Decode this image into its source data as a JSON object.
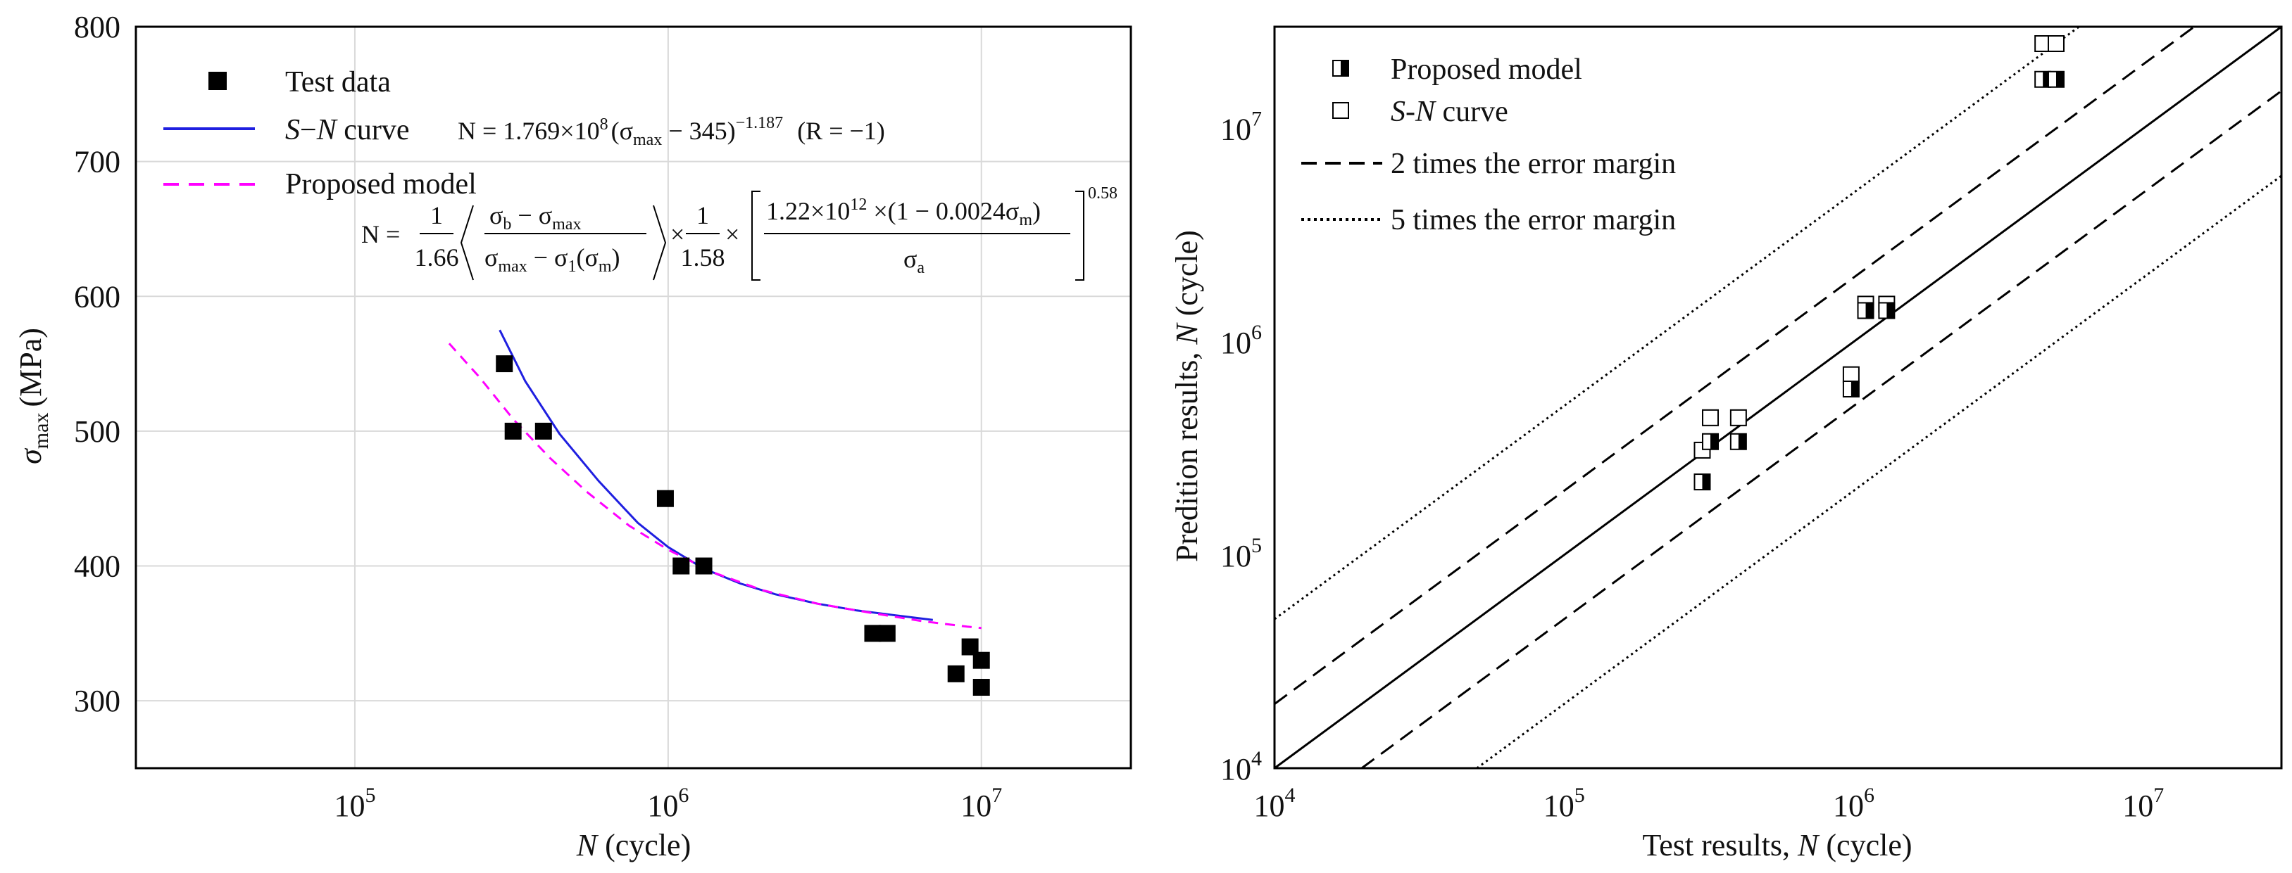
{
  "chart_data": [
    {
      "type": "scatter",
      "xscale": "log",
      "xlim": [
        20000,
        30000000
      ],
      "ylim": [
        250,
        800
      ],
      "x_ticks": [
        100000,
        1000000,
        10000000
      ],
      "x_tick_labels": [
        {
          "base": "10",
          "exp": "5"
        },
        {
          "base": "10",
          "exp": "6"
        },
        {
          "base": "10",
          "exp": "7"
        }
      ],
      "y_ticks": [
        300,
        400,
        500,
        600,
        700,
        800
      ],
      "y_tick_labels": [
        "300",
        "400",
        "500",
        "600",
        "700",
        "800"
      ],
      "grid": true,
      "xlabel": {
        "symbol": "N",
        "unit": "(cycle)"
      },
      "ylabel": {
        "symbol": "σ",
        "sub": "max",
        "unit": "(MPa)"
      },
      "legend_position": "top-left",
      "legend": {
        "test_data": "Test data",
        "sn_label": {
          "s": "S",
          "dash": "−",
          "n": "N",
          "text": "curve"
        },
        "proposed_label": "Proposed model"
      },
      "equations": {
        "sn": {
          "lhs": "N = 1.769×10",
          "exp8": "8",
          "mid": "(σ",
          "max": "max",
          "rest": " − 345)",
          "exp2": "−1.187",
          "cond": "(R = −1)"
        },
        "proposed": {
          "lhs": "N =",
          "f1_num": "1",
          "f1_den": "1.66",
          "f2_num": "σ",
          "f2_num_b": "b",
          "f2_num_rest": " − σ",
          "f2_num_max": "max",
          "f2_den": "σ",
          "f2_den_max": "max",
          "f2_den_rest": " − σ",
          "f2_den_1": "1",
          "f2_den_tail": "(σ",
          "f2_den_m": "m",
          "f2_den_end": ")",
          "times1": "×",
          "f3_num": "1",
          "f3_den": "1.58",
          "times2": "×",
          "f4_num": "1.22×10",
          "f4_num_exp": "12",
          "f4_num_rest": " ×(1 − 0.0024σ",
          "f4_num_m": "m",
          "f4_num_end": ")",
          "f4_den": "σ",
          "f4_den_a": "a",
          "exp": "0.58"
        }
      },
      "colors": {
        "sn": "#1f1fe0",
        "proposed": "#ff00ff",
        "points": "#000000"
      },
      "series": [
        {
          "name": "Test data",
          "kind": "points",
          "x": [
            300000,
            320000,
            400000,
            980000,
            1100000,
            1300000,
            4500000,
            5000000,
            8300000,
            9200000,
            10000000,
            10000000
          ],
          "y": [
            550,
            500,
            500,
            450,
            400,
            400,
            350,
            350,
            320,
            340,
            330,
            310
          ]
        },
        {
          "name": "S-N curve",
          "kind": "line",
          "x": [
            290000,
            350000,
            450000,
            600000,
            800000,
            1000000,
            1300000,
            1700000,
            2200000,
            3000000,
            4000000,
            5500000,
            7000000
          ],
          "y": [
            575,
            537,
            498,
            463,
            432,
            414,
            398,
            387,
            379,
            372,
            367,
            363,
            360
          ]
        },
        {
          "name": "Proposed model",
          "kind": "dashed",
          "x": [
            200000,
            250000,
            320000,
            420000,
            550000,
            750000,
            1000000,
            1400000,
            2000000,
            3000000,
            4500000,
            6500000,
            9000000,
            10000000
          ],
          "y": [
            565,
            540,
            509,
            480,
            455,
            430,
            412,
            395,
            382,
            372,
            365,
            359,
            355,
            354
          ]
        }
      ]
    },
    {
      "type": "scatter",
      "xscale": "log",
      "yscale": "log",
      "xlim": [
        10000,
        30000000
      ],
      "ylim": [
        10000,
        30000000
      ],
      "x_ticks": [
        10000,
        100000,
        1000000,
        10000000
      ],
      "x_tick_labels": [
        {
          "base": "10",
          "exp": "4"
        },
        {
          "base": "10",
          "exp": "5"
        },
        {
          "base": "10",
          "exp": "6"
        },
        {
          "base": "10",
          "exp": "7"
        }
      ],
      "y_ticks": [
        10000,
        100000,
        1000000,
        10000000
      ],
      "y_tick_labels": [
        {
          "base": "10",
          "exp": "4"
        },
        {
          "base": "10",
          "exp": "5"
        },
        {
          "base": "10",
          "exp": "6"
        },
        {
          "base": "10",
          "exp": "7"
        }
      ],
      "grid": false,
      "xlabel": {
        "text": "Test results,",
        "symbol": "N",
        "unit": "(cycle)"
      },
      "ylabel": {
        "text": "Predition results,",
        "symbol": "N",
        "unit": "(cycle)"
      },
      "legend_position": "top-left",
      "legend": {
        "proposed": "Proposed model",
        "sn": {
          "s": "S",
          "dash": "-",
          "n": "N",
          "text": "curve"
        },
        "two_times": "2 times the error margin",
        "five_times": "5 times the error margin"
      },
      "reference_lines": [
        {
          "factor": 1,
          "style": "solid"
        },
        {
          "factor": 2,
          "style": "dashed"
        },
        {
          "factor": 0.5,
          "style": "dashed"
        },
        {
          "factor": 5,
          "style": "dotted"
        },
        {
          "factor": 0.2,
          "style": "dotted"
        }
      ],
      "series": [
        {
          "name": "Proposed model",
          "marker": "half-filled-square",
          "x": [
            300000,
            320000,
            400000,
            1100000,
            1300000,
            980000,
            4500000,
            5000000
          ],
          "y": [
            220000,
            340000,
            340000,
            1400000,
            1400000,
            600000,
            17000000,
            17000000
          ]
        },
        {
          "name": "S-N curve",
          "marker": "open-square",
          "x": [
            300000,
            320000,
            400000,
            1100000,
            1300000,
            980000,
            4500000,
            5000000
          ],
          "y": [
            310000,
            440000,
            440000,
            1500000,
            1500000,
            700000,
            25000000,
            25000000
          ]
        }
      ]
    }
  ]
}
